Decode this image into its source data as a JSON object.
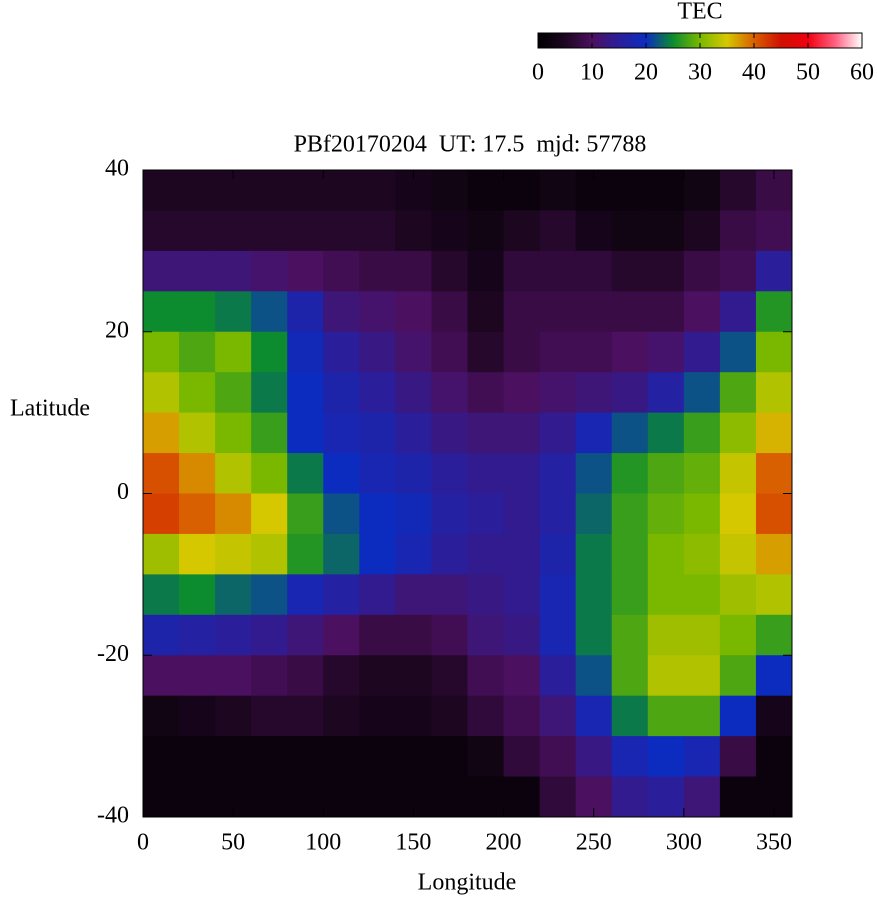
{
  "chart_data": {
    "type": "heatmap",
    "title": "PBf20170204  UT: 17.5  mjd: 57788",
    "xlabel": "Longitude",
    "ylabel": "Latitude",
    "colorbar_label": "TEC",
    "x": [
      10,
      30,
      50,
      70,
      90,
      110,
      130,
      150,
      170,
      190,
      210,
      230,
      250,
      270,
      290,
      310,
      330,
      350
    ],
    "y": [
      37.5,
      32.5,
      27.5,
      22.5,
      17.5,
      12.5,
      7.5,
      2.5,
      -2.5,
      -7.5,
      -12.5,
      -17.5,
      -22.5,
      -27.5,
      -32.5,
      -37.5
    ],
    "values": [
      [
        5,
        5,
        5,
        5,
        5,
        5,
        5,
        4,
        3,
        2,
        2,
        3,
        2,
        2,
        2,
        3,
        6,
        8
      ],
      [
        6,
        6,
        6,
        6,
        6,
        6,
        6,
        5,
        4,
        3,
        5,
        6,
        4,
        3,
        3,
        5,
        8,
        9
      ],
      [
        12,
        12,
        12,
        11,
        10,
        9,
        8,
        8,
        6,
        4,
        7,
        7,
        7,
        6,
        6,
        8,
        9,
        15
      ],
      [
        25,
        25,
        24,
        22,
        17,
        12,
        11,
        10,
        8,
        5,
        8,
        8,
        8,
        8,
        8,
        10,
        14,
        26
      ],
      [
        30,
        28,
        30,
        25,
        19,
        15,
        13,
        11,
        9,
        6,
        8,
        9,
        9,
        10,
        11,
        14,
        22,
        30
      ],
      [
        33,
        30,
        28,
        24,
        20,
        17,
        15,
        13,
        11,
        9,
        10,
        11,
        12,
        13,
        16,
        22,
        28,
        33
      ],
      [
        37,
        33,
        30,
        27,
        20,
        18,
        17,
        15,
        13,
        12,
        12,
        14,
        18,
        22,
        24,
        27,
        31,
        36
      ],
      [
        41,
        38,
        33,
        30,
        24,
        20,
        18,
        17,
        15,
        14,
        14,
        16,
        22,
        26,
        28,
        29,
        34,
        40
      ],
      [
        42,
        40,
        38,
        35,
        27,
        22,
        20,
        19,
        16,
        15,
        14,
        16,
        23,
        27,
        29,
        30,
        35,
        41
      ],
      [
        32,
        35,
        34,
        33,
        26,
        23,
        20,
        18,
        15,
        14,
        14,
        17,
        24,
        27,
        30,
        31,
        34,
        37
      ],
      [
        24,
        25,
        23,
        22,
        18,
        16,
        14,
        12,
        12,
        13,
        14,
        18,
        24,
        27,
        30,
        30,
        32,
        33
      ],
      [
        17,
        16,
        15,
        14,
        12,
        10,
        8,
        8,
        9,
        12,
        13,
        18,
        24,
        28,
        32,
        32,
        30,
        27
      ],
      [
        10,
        10,
        10,
        9,
        8,
        6,
        5,
        5,
        6,
        9,
        10,
        15,
        22,
        28,
        33,
        33,
        28,
        20
      ],
      [
        3,
        4,
        5,
        6,
        6,
        5,
        4,
        4,
        5,
        7,
        9,
        12,
        18,
        24,
        28,
        28,
        20,
        4
      ],
      [
        2,
        2,
        2,
        2,
        2,
        2,
        2,
        2,
        2,
        3,
        7,
        9,
        13,
        18,
        20,
        18,
        8,
        2
      ],
      [
        2,
        2,
        2,
        2,
        2,
        2,
        2,
        2,
        2,
        2,
        2,
        7,
        10,
        14,
        15,
        12,
        2,
        2
      ]
    ],
    "xlim": [
      0,
      360
    ],
    "xticks": [
      0,
      50,
      100,
      150,
      200,
      250,
      300,
      350
    ],
    "ylim": [
      -40,
      40
    ],
    "yticks": [
      -40,
      -20,
      0,
      20,
      40
    ],
    "zlim": [
      0,
      60
    ],
    "zticks": [
      0,
      10,
      20,
      30,
      40,
      50,
      60
    ],
    "colorscale": [
      "#000000",
      "#1c0620",
      "#4c1060",
      "#2a1e9a",
      "#0c2cc0",
      "#0c8c2e",
      "#7ab800",
      "#d6c800",
      "#d86000",
      "#d01000",
      "#f00010",
      "#ff6080",
      "#ffffff"
    ]
  }
}
